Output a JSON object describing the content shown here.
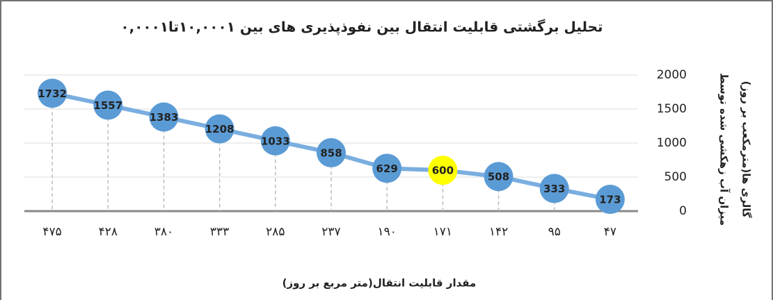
{
  "chart_data": {
    "type": "line",
    "title": "تحلیل برگشتی  قابلیت انتقال بین نفوذپذیری های بین ۱۰,۰۰۰۱تا۰,۰۰۰۱",
    "y_label": [
      "میزان آب زهکشی شده توسط",
      "گالری ها(مترمکعب بر روز)"
    ],
    "x_label": "مقدار قابلیت انتقال(متر مربع بر روز)",
    "categories": [
      "۴۷۵",
      "۴۲۸",
      "۳۸۰",
      "۳۳۳",
      "۲۸۵",
      "۲۳۷",
      "۱۹۰",
      "۱۷۱",
      "۱۴۲",
      "۹۵",
      "۴۷"
    ],
    "series": [
      {
        "color": "#7aaee0",
        "values": [
          1732,
          1557,
          1383,
          1208,
          1033,
          858,
          629,
          600,
          508,
          333,
          173
        ],
        "point_colors": [
          "#5b9bd5",
          "#5b9bd5",
          "#5b9bd5",
          "#5b9bd5",
          "#5b9bd5",
          "#5b9bd5",
          "#5b9bd5",
          "#ffff00",
          "#5b9bd5",
          "#5b9bd5",
          "#5b9bd5"
        ]
      }
    ],
    "ylim": [
      0,
      2000
    ],
    "yticks": [
      0,
      500,
      1000,
      1500,
      2000
    ],
    "grid": true,
    "y_axis_side": "right"
  }
}
